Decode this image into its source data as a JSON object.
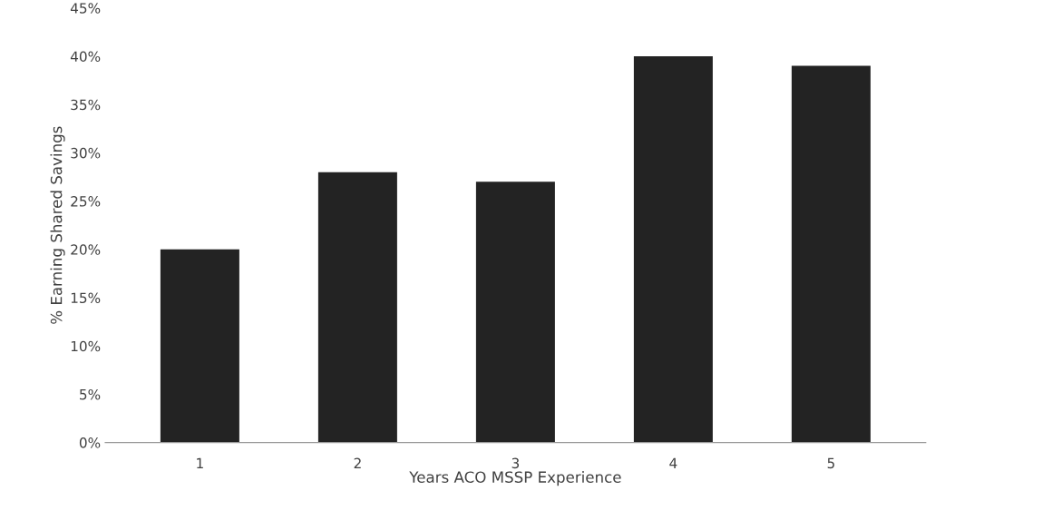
{
  "chart_data": {
    "type": "bar",
    "xlabel": "Years ACO MSSP Experience",
    "ylabel": "% Earning Shared Savings",
    "categories": [
      "1",
      "2",
      "3",
      "4",
      "5"
    ],
    "values": [
      20,
      28,
      27,
      40,
      39
    ],
    "color": "#232323",
    "ylim": [
      0,
      45
    ],
    "yticks": [
      {
        "value": 0,
        "label": "0%"
      },
      {
        "value": 5,
        "label": "5%"
      },
      {
        "value": 10,
        "label": "10%"
      },
      {
        "value": 15,
        "label": "15%"
      },
      {
        "value": 20,
        "label": "20%"
      },
      {
        "value": 25,
        "label": "25%"
      },
      {
        "value": 30,
        "label": "30%"
      },
      {
        "value": 35,
        "label": "35%"
      },
      {
        "value": 40,
        "label": "40%"
      },
      {
        "value": 45,
        "label": "45%"
      }
    ],
    "grid": false,
    "legend": false
  }
}
